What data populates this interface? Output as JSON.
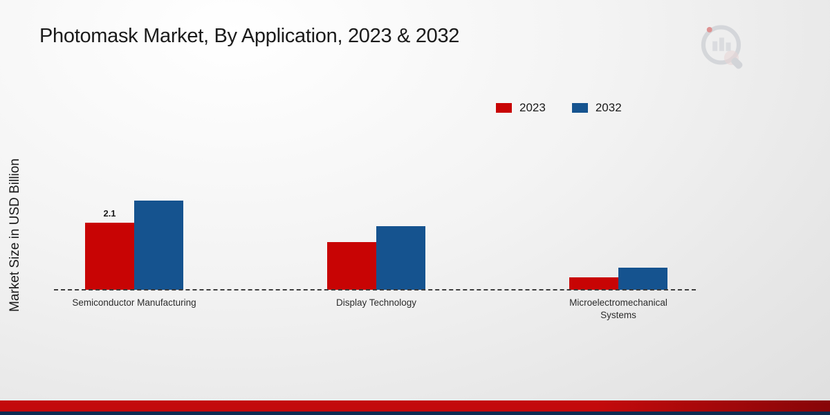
{
  "title": "Photomask Market, By Application, 2023 & 2032",
  "y_axis_label": "Market Size in USD Billion",
  "legend": [
    {
      "label": "2023",
      "color": "#c80404"
    },
    {
      "label": "2032",
      "color": "#15538f"
    }
  ],
  "chart_data": {
    "type": "bar",
    "title": "Photomask Market, By Application, 2023 & 2032",
    "ylabel": "Market Size in USD Billion",
    "xlabel": "",
    "ylim": [
      0,
      3
    ],
    "grid": false,
    "legend_position": "top-right",
    "categories": [
      "Semiconductor Manufacturing",
      "Display Technology",
      "Microelectromechanical Systems"
    ],
    "series": [
      {
        "name": "2023",
        "color": "#c80404",
        "values": [
          2.1,
          1.5,
          0.4
        ]
      },
      {
        "name": "2032",
        "color": "#15538f",
        "values": [
          2.8,
          2.0,
          0.7
        ]
      }
    ],
    "bar_labels": [
      {
        "series_index": 0,
        "category_index": 0,
        "text": "2.1"
      }
    ]
  },
  "footer": {
    "red_stripe_color": "#c30a0c",
    "navy_stripe_color": "#0d2c52"
  }
}
